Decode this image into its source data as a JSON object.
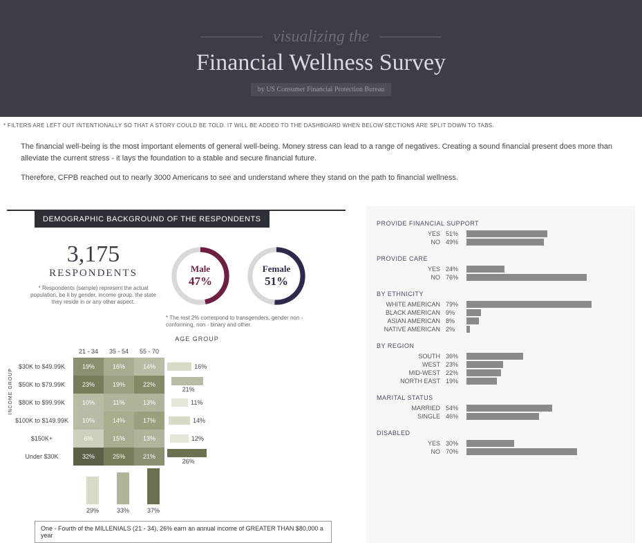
{
  "header": {
    "pretitle": "visualizing the",
    "title": "Financial Wellness Survey",
    "byline": "by US Consumer Financial Protection Bureau"
  },
  "notes": {
    "filters": "* FILTERS ARE LEFT OUT INTENTIONALLY SO THAT A STORY COULD BE TOLD. IT WILL BE ADDED TO THE DASHBOARD WHEN BELOW SECTIONS ARE SPLIT DOWN TO TABS."
  },
  "intro": {
    "p1": "The financial well-being is the most important elements of general well-being. Money stress can lead to a range of negatives. Creating a sound financial present does more than alleviate the current stress - it lays the foundation to a stable and secure financial future.",
    "p2": "Therefore, CFPB reached out to nearly 3000 Americans to see and understand where they stand on the path to financial wellness."
  },
  "section_title": "DEMOGRAPHIC BACKGROUND OF THE RESPONDENTS",
  "respondents": {
    "count": "3,175",
    "label": "RESPONDENTS",
    "note": "* Respondents (sample) represent the actual population, be it by gender, income group, the state they reside in or any other aspect."
  },
  "gender": {
    "male": {
      "label": "Male",
      "pct_label": "47%",
      "value": 47,
      "color": "#6e1f3f"
    },
    "female": {
      "label": "Female",
      "pct_label": "51%",
      "value": 51,
      "color": "#2e2a4a"
    },
    "track_color": "#d8d8d8",
    "note": "* The rest 2% correspond to transgenders, gender non - conforming, non - binary and other."
  },
  "matrix": {
    "age_title": "AGE GROUP",
    "income_title": "INCOME GROUP",
    "age_cols": [
      "21 - 34",
      "35 - 54",
      "55 - 70"
    ],
    "income_rows": [
      "$30K to $49.99K",
      "$50K to $79.99K",
      "$80K to $99.99K",
      "$100K to $149.99K",
      "$150K+",
      "Under $30K"
    ],
    "cells": [
      [
        19,
        16,
        14
      ],
      [
        23,
        19,
        22
      ],
      [
        10,
        11,
        13
      ],
      [
        10,
        14,
        17
      ],
      [
        6,
        15,
        13
      ],
      [
        32,
        25,
        21
      ]
    ],
    "cell_colors": [
      [
        "#8a9070",
        "#a8ad90",
        "#b8bca5"
      ],
      [
        "#767d5a",
        "#9aa080",
        "#848a68"
      ],
      [
        "#b8bca5",
        "#b0b49a",
        "#b0b49a"
      ],
      [
        "#b8bca5",
        "#a8ad90",
        "#9aa080"
      ],
      [
        "#ccd0bc",
        "#a8ad90",
        "#b0b49a"
      ],
      [
        "#5a6044",
        "#767d5a",
        "#8a9070"
      ]
    ],
    "row_totals": [
      16,
      21,
      11,
      14,
      12,
      26
    ],
    "row_bar_colors": [
      "#d8dbc8",
      "#b8bca5",
      "#e4e6d8",
      "#d8dbc8",
      "#e4e6d8",
      "#6a7050"
    ],
    "col_totals": [
      29,
      33,
      37
    ],
    "col_bar_colors": [
      "#d8dbc8",
      "#b0b49a",
      "#6a7050"
    ]
  },
  "insight": "One - Fourth of the MILLENIALS (21 - 34), 26% earn an annual income of GREATER THAN $80,000 a year",
  "right_stats": {
    "bar_color": "#8a8a8a",
    "groups": [
      {
        "title": "PROVIDE FINANCIAL SUPPORT",
        "rows": [
          {
            "label": "YES",
            "pct": 51
          },
          {
            "label": "NO",
            "pct": 49
          }
        ]
      },
      {
        "title": "PROVIDE CARE",
        "rows": [
          {
            "label": "YES",
            "pct": 24
          },
          {
            "label": "NO",
            "pct": 76
          }
        ]
      },
      {
        "title": "BY ETHNICITY",
        "rows": [
          {
            "label": "WHITE AMERICAN",
            "pct": 79
          },
          {
            "label": "BLACK AMERICAN",
            "pct": 9
          },
          {
            "label": "ASIAN AMERICAN",
            "pct": 8
          },
          {
            "label": "NATIVE AMERICAN",
            "pct": 2
          }
        ]
      },
      {
        "title": "BY REGION",
        "rows": [
          {
            "label": "SOUTH",
            "pct": 36
          },
          {
            "label": "WEST",
            "pct": 23
          },
          {
            "label": "MID-WEST",
            "pct": 22
          },
          {
            "label": "NORTH EAST",
            "pct": 19
          }
        ]
      },
      {
        "title": "MARITAL STATUS",
        "rows": [
          {
            "label": "MARRIED",
            "pct": 54
          },
          {
            "label": "SINGLE",
            "pct": 46
          }
        ]
      },
      {
        "title": "DISABLED",
        "rows": [
          {
            "label": "YES",
            "pct": 30
          },
          {
            "label": "NO",
            "pct": 70
          }
        ]
      }
    ]
  }
}
